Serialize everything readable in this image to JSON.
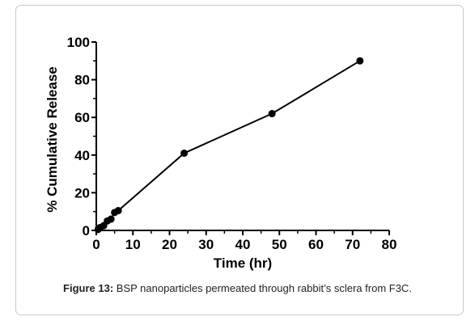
{
  "chart_data": {
    "type": "line",
    "title": "",
    "xlabel": "Time (hr)",
    "ylabel": "% Cumulative Release",
    "xlim": [
      0,
      80
    ],
    "ylim": [
      0,
      100
    ],
    "xticks": [
      0,
      10,
      20,
      30,
      40,
      50,
      60,
      70,
      80
    ],
    "yticks": [
      0,
      20,
      40,
      60,
      80,
      100
    ],
    "grid": false,
    "series": [
      {
        "x": [
          0.5,
          1,
          2,
          3,
          4,
          5,
          6,
          24,
          48,
          72
        ],
        "y": [
          0.5,
          1.5,
          2.5,
          5,
          6,
          9.5,
          10.5,
          41,
          62,
          90
        ]
      }
    ],
    "marker_color": "#000000"
  },
  "caption": {
    "label": "Figure 13:",
    "text": " BSP nanoparticles permeated through rabbit’s sclera from F3C."
  }
}
